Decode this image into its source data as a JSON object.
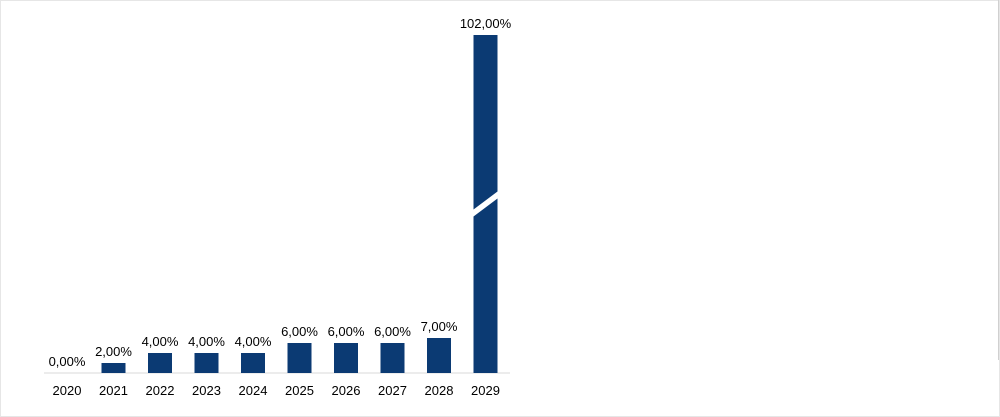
{
  "chart_data": {
    "type": "bar",
    "categories": [
      "2020",
      "2021",
      "2022",
      "2023",
      "2024",
      "2025",
      "2026",
      "2027",
      "2028",
      "2029"
    ],
    "values": [
      0,
      2,
      4,
      4,
      4,
      6,
      6,
      6,
      7,
      102
    ],
    "data_labels": [
      "0,00%",
      "2,00%",
      "4,00%",
      "4,00%",
      "4,00%",
      "6,00%",
      "6,00%",
      "6,00%",
      "7,00%",
      "102,00%"
    ],
    "title": "",
    "xlabel": "",
    "ylabel": "",
    "axis_break": {
      "category": "2029"
    },
    "bar_color": "#0b3a73",
    "grid": false,
    "legend": "none"
  }
}
